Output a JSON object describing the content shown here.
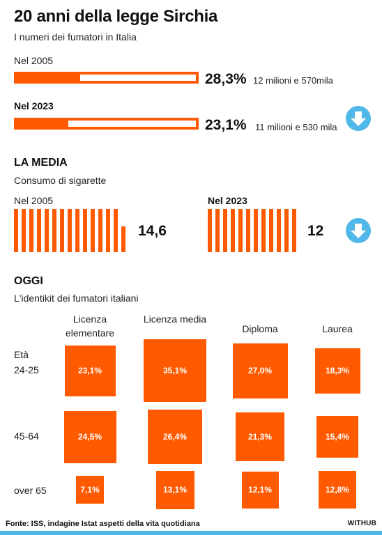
{
  "header": {
    "title": "20 anni della legge Sirchia",
    "subtitle": "I numeri dei fumatori in Italia"
  },
  "smokers": [
    {
      "label": "Nel 2005",
      "percent_label": "28,3%",
      "value": 28.3,
      "detail": "12 milioni e 570mila",
      "trend_icon": ""
    },
    {
      "label": "Nel 2023",
      "percent_label": "23,1%",
      "value": 23.1,
      "detail": "11 milioni e 530 mila",
      "trend_icon": "arrow-down-icon"
    }
  ],
  "average": {
    "heading": "LA MEDIA",
    "subtitle": "Consumo di sigarette",
    "items": [
      {
        "label": "Nel 2005",
        "value_label": "14,6",
        "value": 14.6
      },
      {
        "label": "Nel 2023",
        "value_label": "12",
        "value": 12,
        "trend_icon": "arrow-down-icon"
      }
    ]
  },
  "today": {
    "heading": "OGGI",
    "subtitle": "L'identikit dei fumatori italiani",
    "age_label": "Età",
    "columns": [
      "Licenza elementare",
      "Licenza media",
      "Diploma",
      "Laurea"
    ],
    "rows": [
      {
        "label": "24-25",
        "cells": [
          "23,1%",
          "35,1%",
          "27,0%",
          "18,3%"
        ]
      },
      {
        "label": "45-64",
        "cells": [
          "24,5%",
          "26,4%",
          "21,3%",
          "15,4%"
        ]
      },
      {
        "label": "over 65",
        "cells": [
          "7,1%",
          "13,1%",
          "12,1%",
          "12,8%"
        ]
      }
    ]
  },
  "footer": {
    "source": "Fonte: ISS, indagine Istat aspetti della vita quotidiana",
    "brand": "WITHUB"
  },
  "colors": {
    "accent": "#ff5a00",
    "arrow": "#4fb8e8",
    "text": "#111111"
  },
  "chart_data": [
    {
      "type": "bar",
      "title": "I numeri dei fumatori in Italia",
      "categories": [
        "Nel 2005",
        "Nel 2023"
      ],
      "values": [
        28.3,
        23.1
      ],
      "unit": "%",
      "annotations": [
        "12 milioni e 570mila",
        "11 milioni e 530 mila"
      ]
    },
    {
      "type": "bar",
      "title": "Consumo di sigarette",
      "categories": [
        "Nel 2005",
        "Nel 2023"
      ],
      "values": [
        14.6,
        12
      ]
    },
    {
      "type": "heatmap",
      "title": "L'identikit dei fumatori italiani",
      "x": [
        "Licenza elementare",
        "Licenza media",
        "Diploma",
        "Laurea"
      ],
      "y": [
        "24-25",
        "45-64",
        "over 65"
      ],
      "values": [
        [
          23.1,
          35.1,
          27.0,
          18.3
        ],
        [
          24.5,
          26.4,
          21.3,
          15.4
        ],
        [
          7.1,
          13.1,
          12.1,
          12.8
        ]
      ],
      "unit": "%"
    }
  ]
}
